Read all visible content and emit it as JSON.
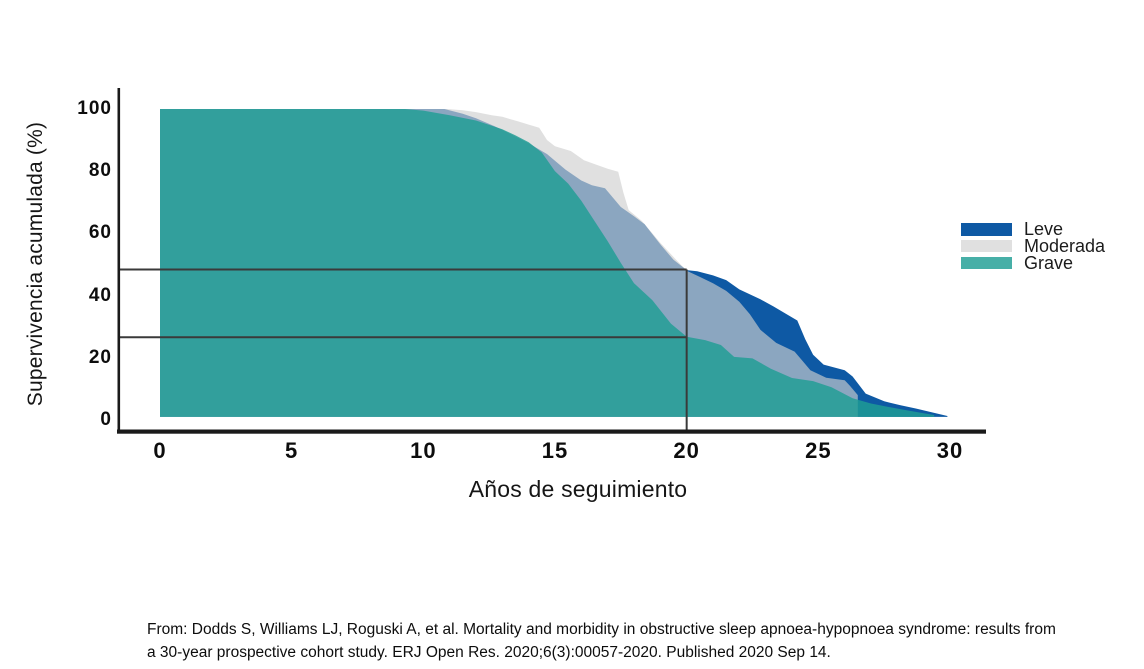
{
  "figure": {
    "y_axis_title": "Supervivencia acumulada (%)",
    "x_axis_title": "Años de seguimiento"
  },
  "legend": {
    "items": [
      {
        "label": "Leve",
        "color": "#0e59a4",
        "opacity": 1
      },
      {
        "label": "Moderada",
        "color": "#cfcfcf",
        "opacity": 0.65
      },
      {
        "label": "Grave",
        "color": "#1f9e94",
        "opacity": 0.82
      }
    ]
  },
  "citation": {
    "line1": "From: Dodds S, Williams LJ, Roguski A, et al. Mortality and morbidity in obstructive sleep apnoea-hypopnoea syndrome: results from",
    "line2": "a 30-year prospective cohort study. ERJ Open Res. 2020;6(3):00057-2020. Published 2020 Sep 14."
  },
  "chart_data": {
    "type": "area",
    "title": "",
    "xlabel": "Años de seguimiento",
    "ylabel": "Supervivencia acumulada (%)",
    "xlim": [
      0,
      31
    ],
    "ylim": [
      0,
      100
    ],
    "x_ticks": [
      0,
      5,
      10,
      15,
      20,
      25,
      30
    ],
    "y_ticks": [
      0,
      20,
      40,
      60,
      80,
      100
    ],
    "grid": false,
    "legend_position": "right",
    "baseline_value": 1,
    "reference_lines": {
      "horizontal_values": [
        48.4,
        26.6
      ],
      "vertical_x": 20,
      "meaning": "cumulative survival at 20 years: Leve ~48%, Grave ~27%"
    },
    "series": [
      {
        "name": "Leve",
        "color": "#0e59a4",
        "fill_opacity": 1,
        "points": [
          [
            0,
            100
          ],
          [
            10.8,
            100
          ],
          [
            11.5,
            98.5
          ],
          [
            12,
            97
          ],
          [
            12.7,
            94.5
          ],
          [
            13.3,
            92
          ],
          [
            14,
            89
          ],
          [
            14.7,
            85.5
          ],
          [
            15.4,
            80.5
          ],
          [
            16,
            77
          ],
          [
            16.4,
            75.5
          ],
          [
            16.9,
            74.5
          ],
          [
            17.2,
            71.5
          ],
          [
            17.5,
            68.5
          ],
          [
            18,
            65.5
          ],
          [
            18.4,
            63
          ],
          [
            19,
            56.5
          ],
          [
            19.5,
            51.5
          ],
          [
            20,
            48.2
          ],
          [
            20.4,
            47.8
          ],
          [
            21,
            46.5
          ],
          [
            21.5,
            45
          ],
          [
            22,
            42
          ],
          [
            22.8,
            38.8
          ],
          [
            23.3,
            36.5
          ],
          [
            23.8,
            34
          ],
          [
            24.2,
            32
          ],
          [
            24.5,
            26
          ],
          [
            24.8,
            21
          ],
          [
            25.2,
            17.8
          ],
          [
            26,
            16
          ],
          [
            26.3,
            14
          ],
          [
            26.8,
            8.5
          ],
          [
            27.5,
            6
          ],
          [
            28.1,
            4.8
          ],
          [
            28.7,
            3.7
          ],
          [
            29.3,
            2.5
          ],
          [
            29.9,
            1.3
          ]
        ]
      },
      {
        "name": "Moderada",
        "color": "#cfcfcf",
        "fill_opacity": 0.65,
        "points": [
          [
            0,
            100
          ],
          [
            10.9,
            100
          ],
          [
            11.5,
            99.6
          ],
          [
            12,
            99
          ],
          [
            12.6,
            98
          ],
          [
            13,
            97.5
          ],
          [
            13.6,
            96
          ],
          [
            14,
            95
          ],
          [
            14.4,
            94
          ],
          [
            14.7,
            90
          ],
          [
            15,
            88
          ],
          [
            15.6,
            86.5
          ],
          [
            16.1,
            83.5
          ],
          [
            16.6,
            82
          ],
          [
            17,
            80.8
          ],
          [
            17.4,
            79.8
          ],
          [
            17.6,
            73
          ],
          [
            17.8,
            67.5
          ],
          [
            18.3,
            64
          ],
          [
            19,
            57
          ],
          [
            19.6,
            51.5
          ],
          [
            20,
            48
          ],
          [
            20.5,
            46
          ],
          [
            21,
            44
          ],
          [
            21.5,
            41.5
          ],
          [
            22,
            38
          ],
          [
            22.4,
            34
          ],
          [
            22.8,
            29
          ],
          [
            23.4,
            24.8
          ],
          [
            24.1,
            22
          ],
          [
            24.4,
            19
          ],
          [
            24.7,
            16
          ],
          [
            25.3,
            13.6
          ],
          [
            26,
            12.8
          ],
          [
            26.2,
            11
          ],
          [
            26.5,
            8
          ]
        ]
      },
      {
        "name": "Grave",
        "color": "#1f9e94",
        "fill_opacity": 0.82,
        "points": [
          [
            0,
            100
          ],
          [
            9.3,
            100
          ],
          [
            10,
            99.5
          ],
          [
            11,
            98
          ],
          [
            12,
            96.3
          ],
          [
            13,
            93.5
          ],
          [
            13.5,
            91.5
          ],
          [
            14,
            89.3
          ],
          [
            14.5,
            86
          ],
          [
            15,
            80
          ],
          [
            15.5,
            76
          ],
          [
            16,
            70.5
          ],
          [
            16.5,
            64
          ],
          [
            17,
            57.5
          ],
          [
            17.5,
            50.5
          ],
          [
            18,
            44
          ],
          [
            18.7,
            38.5
          ],
          [
            19.4,
            31
          ],
          [
            20,
            26.8
          ],
          [
            20.7,
            25.7
          ],
          [
            21.3,
            24.1
          ],
          [
            21.8,
            20.3
          ],
          [
            22.5,
            19.8
          ],
          [
            23.2,
            16.5
          ],
          [
            24,
            13.5
          ],
          [
            24.8,
            12.5
          ],
          [
            25.5,
            10.5
          ],
          [
            26.3,
            7
          ],
          [
            27,
            5.3
          ],
          [
            27.6,
            4.3
          ],
          [
            28.3,
            3.2
          ],
          [
            29,
            2.2
          ],
          [
            29.4,
            1.6
          ]
        ]
      }
    ]
  }
}
